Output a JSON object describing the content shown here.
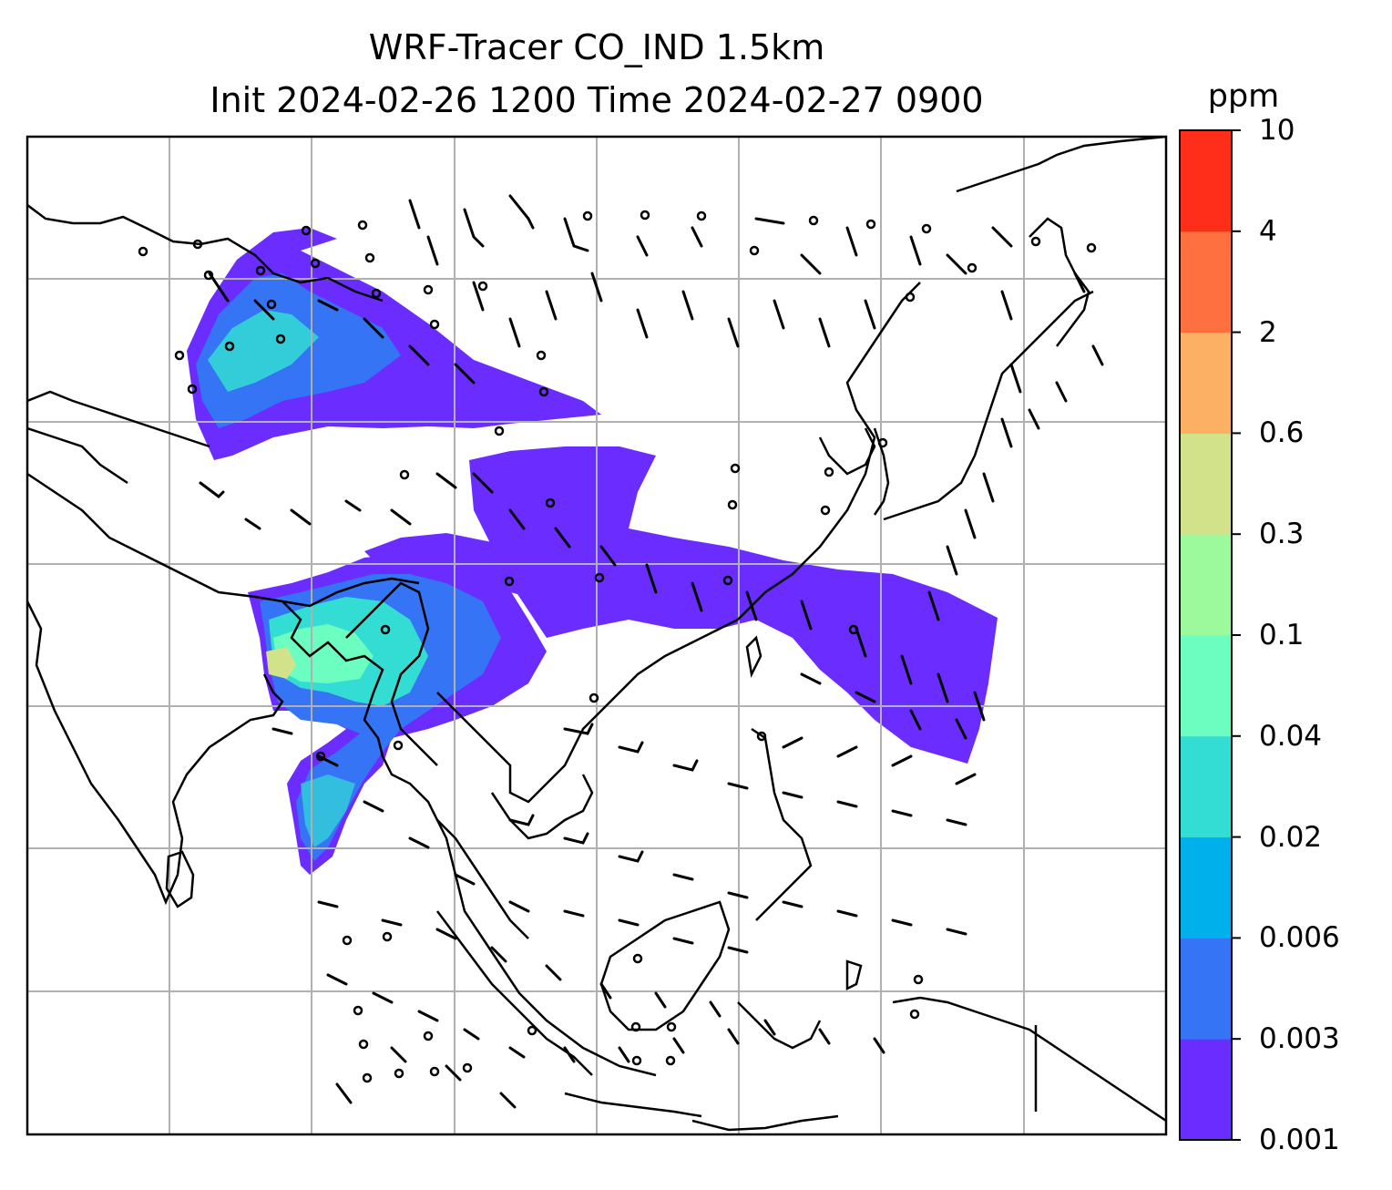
{
  "title": {
    "line1": "WRF-Tracer CO_IND 1.5km",
    "line2": "Init 2024-02-26 1200 Time 2024-02-27 0900"
  },
  "colorbar": {
    "unit": "ppm",
    "ticks": [
      "0.001",
      "0.003",
      "0.006",
      "0.02",
      "0.04",
      "0.1",
      "0.3",
      "0.6",
      "2",
      "4",
      "10"
    ],
    "colors": [
      "#6a2cff",
      "#3474f5",
      "#00b0ea",
      "#33ddd4",
      "#6cfdc0",
      "#9cf99c",
      "#d1e28a",
      "#fcb063",
      "#ff7040",
      "#ff2e1a"
    ]
  },
  "map": {
    "gridlines": true,
    "gridline_color": "#b0b0b0",
    "coastline_color": "#000000",
    "barb_color": "#000000"
  }
}
